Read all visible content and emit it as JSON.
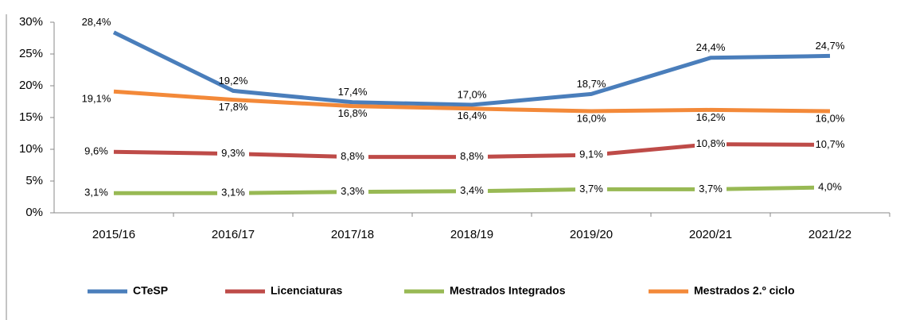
{
  "chart_data": {
    "type": "line",
    "categories": [
      "2015/16",
      "2016/17",
      "2017/18",
      "2018/19",
      "2019/20",
      "2020/21",
      "2021/22"
    ],
    "series": [
      {
        "name": "CTeSP",
        "color": "#4a7ebb",
        "values": [
          28.4,
          19.2,
          17.4,
          17.0,
          18.7,
          24.4,
          24.7
        ],
        "value_labels": [
          "28,4%",
          "19,2%",
          "17,4%",
          "17,0%",
          "18,7%",
          "24,4%",
          "24,7%"
        ]
      },
      {
        "name": "Licenciaturas",
        "color": "#be4b48",
        "values": [
          9.6,
          9.3,
          8.8,
          8.8,
          9.1,
          10.8,
          10.7
        ],
        "value_labels": [
          "9,6%",
          "9,3%",
          "8,8%",
          "8,8%",
          "9,1%",
          "10,8%",
          "10,7%"
        ]
      },
      {
        "name": "Mestrados Integrados",
        "color": "#98b954",
        "values": [
          3.1,
          3.1,
          3.3,
          3.4,
          3.7,
          3.7,
          4.0
        ],
        "value_labels": [
          "3,1%",
          "3,1%",
          "3,3%",
          "3,4%",
          "3,7%",
          "3,7%",
          "4,0%"
        ]
      },
      {
        "name": "Mestrados 2.º ciclo",
        "color": "#f38939",
        "values": [
          19.1,
          17.8,
          16.8,
          16.4,
          16.0,
          16.2,
          16.0
        ],
        "value_labels": [
          "19,1%",
          "17,8%",
          "16,8%",
          "16,4%",
          "16,0%",
          "16,2%",
          "16,0%"
        ]
      }
    ],
    "ylim": [
      0,
      30
    ],
    "yticks": [
      {
        "value": 0,
        "label": "0%"
      },
      {
        "value": 5,
        "label": "5%"
      },
      {
        "value": 10,
        "label": "10%"
      },
      {
        "value": 15,
        "label": "15%"
      },
      {
        "value": 20,
        "label": "20%"
      },
      {
        "value": 25,
        "label": "25%"
      },
      {
        "value": 30,
        "label": "30%"
      }
    ],
    "legend": "bottom",
    "grid": false
  }
}
